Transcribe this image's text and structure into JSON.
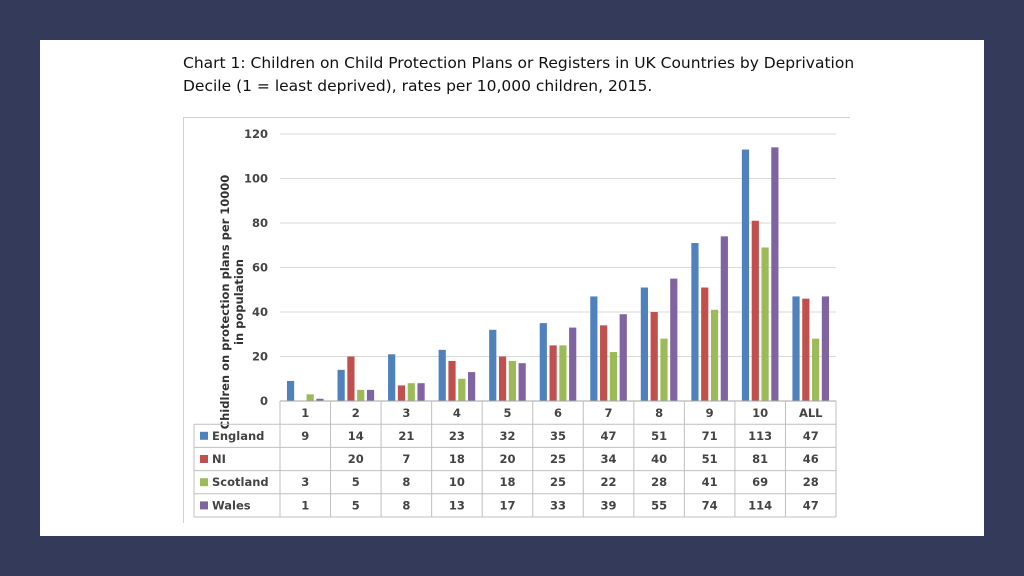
{
  "chart_data": {
    "type": "bar",
    "title": "Chart 1: Children on Child Protection Plans or Registers in UK Countries by Deprivation Decile (1 = least deprived), rates per 10,000 children, 2015.",
    "ylabel": "Chidlren on protection plans per 10000 in population",
    "xlabel": "",
    "ylim": [
      0,
      120
    ],
    "yticks": [
      0,
      20,
      40,
      60,
      80,
      100,
      120
    ],
    "grid": true,
    "categories": [
      "1",
      "2",
      "3",
      "4",
      "5",
      "6",
      "7",
      "8",
      "9",
      "10",
      "ALL"
    ],
    "series": [
      {
        "name": "England",
        "color": "#4f81bd",
        "values": [
          9,
          14,
          21,
          23,
          32,
          35,
          47,
          51,
          71,
          113,
          47
        ]
      },
      {
        "name": "NI",
        "color": "#c0504d",
        "values": [
          null,
          20,
          7,
          18,
          20,
          25,
          34,
          40,
          51,
          81,
          46
        ]
      },
      {
        "name": "Scotland",
        "color": "#9bbb59",
        "values": [
          3,
          5,
          8,
          10,
          18,
          25,
          22,
          28,
          41,
          69,
          28
        ]
      },
      {
        "name": "Wales",
        "color": "#8064a2",
        "values": [
          1,
          5,
          8,
          13,
          17,
          33,
          39,
          55,
          74,
          114,
          47
        ]
      }
    ],
    "table_values": {
      "England": [
        "9",
        "14",
        "21",
        "23",
        "32",
        "35",
        "47",
        "51",
        "71",
        "113",
        "47"
      ],
      "NI": [
        "",
        "20",
        "7",
        "18",
        "20",
        "25",
        "34",
        "40",
        "51",
        "81",
        "46"
      ],
      "Scotland": [
        "3",
        "5",
        "8",
        "10",
        "18",
        "25",
        "22",
        "28",
        "41",
        "69",
        "28"
      ],
      "Wales": [
        "1",
        "5",
        "8",
        "13",
        "17",
        "33",
        "39",
        "55",
        "74",
        "114",
        "47"
      ]
    }
  }
}
